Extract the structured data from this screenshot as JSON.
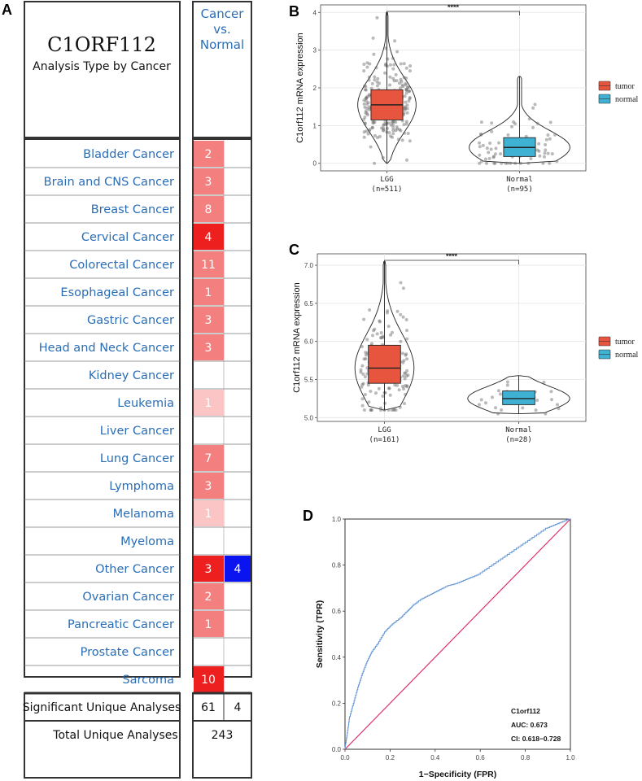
{
  "panel_a": {
    "label": "A",
    "gene": "C1ORF112",
    "subtitle": "Analysis Type by Cancer",
    "header_line1": "Cancer",
    "header_line2": "vs.",
    "header_line3": "Normal",
    "rows": [
      {
        "name": "Bladder Cancer",
        "up": 2,
        "down": null,
        "up_color": "#f47f7f"
      },
      {
        "name": "Brain and CNS Cancer",
        "up": 3,
        "down": null,
        "up_color": "#f47f7f"
      },
      {
        "name": "Breast Cancer",
        "up": 8,
        "down": null,
        "up_color": "#f47f7f"
      },
      {
        "name": "Cervical Cancer",
        "up": 4,
        "down": null,
        "up_color": "#ee1f1f"
      },
      {
        "name": "Colorectal Cancer",
        "up": 11,
        "down": null,
        "up_color": "#f47f7f"
      },
      {
        "name": "Esophageal Cancer",
        "up": 1,
        "down": null,
        "up_color": "#f47f7f"
      },
      {
        "name": "Gastric Cancer",
        "up": 3,
        "down": null,
        "up_color": "#f47f7f"
      },
      {
        "name": "Head and Neck Cancer",
        "up": 3,
        "down": null,
        "up_color": "#f47f7f"
      },
      {
        "name": "Kidney Cancer",
        "up": null,
        "down": null,
        "up_color": ""
      },
      {
        "name": "Leukemia",
        "up": 1,
        "down": null,
        "up_color": "#fbc5c5"
      },
      {
        "name": "Liver Cancer",
        "up": null,
        "down": null,
        "up_color": ""
      },
      {
        "name": "Lung Cancer",
        "up": 7,
        "down": null,
        "up_color": "#f47f7f"
      },
      {
        "name": "Lymphoma",
        "up": 3,
        "down": null,
        "up_color": "#f47f7f"
      },
      {
        "name": "Melanoma",
        "up": 1,
        "down": null,
        "up_color": "#fbc5c5"
      },
      {
        "name": "Myeloma",
        "up": null,
        "down": null,
        "up_color": ""
      },
      {
        "name": "Other Cancer",
        "up": 3,
        "down": 4,
        "up_color": "#ee1f1f"
      },
      {
        "name": "Ovarian Cancer",
        "up": 2,
        "down": null,
        "up_color": "#f47f7f"
      },
      {
        "name": "Pancreatic Cancer",
        "up": 1,
        "down": null,
        "up_color": "#f47f7f"
      },
      {
        "name": "Prostate Cancer",
        "up": null,
        "down": null,
        "up_color": ""
      },
      {
        "name": "Sarcoma",
        "up": 10,
        "down": null,
        "up_color": "#ee1f1f"
      }
    ],
    "down_color": "#0a14f0",
    "sig_label": "Significant Unique Analyses",
    "sig_up": "61",
    "sig_down": "4",
    "total_label": "Total Unique Analyses",
    "total": "243"
  },
  "chart_data": [
    {
      "label": "B",
      "type": "violin-box",
      "ylabel": "C1orf112 mRNA expression",
      "ylim": [
        -0.2,
        4.2
      ],
      "yticks": [
        0,
        1,
        2,
        3,
        4
      ],
      "groups": [
        {
          "name": "LGG",
          "n_label": "(n=511)",
          "n": 511,
          "median": 1.55,
          "q1": 1.15,
          "q3": 1.95,
          "whisker_low": 0.0,
          "whisker_high": 4.0,
          "color": "#e8553e"
        },
        {
          "name": "Normal",
          "n_label": "(n=95)",
          "n": 95,
          "median": 0.42,
          "q1": 0.18,
          "q3": 0.68,
          "whisker_low": 0.0,
          "whisker_high": 2.3,
          "color": "#3fb1d3"
        }
      ],
      "significance": "****",
      "legend": [
        {
          "name": "tumor",
          "color": "#e8553e"
        },
        {
          "name": "normal",
          "color": "#3fb1d3"
        }
      ]
    },
    {
      "label": "C",
      "type": "violin-box",
      "ylabel": "C1orf112 mRNA expression",
      "ylim": [
        4.95,
        7.15
      ],
      "yticks": [
        5.0,
        5.5,
        6.0,
        6.5,
        7.0
      ],
      "groups": [
        {
          "name": "LGG",
          "n_label": "(n=161)",
          "n": 161,
          "median": 5.65,
          "q1": 5.45,
          "q3": 5.95,
          "whisker_low": 5.1,
          "whisker_high": 7.05,
          "color": "#e8553e"
        },
        {
          "name": "Normal",
          "n_label": "(n=28)",
          "n": 28,
          "median": 5.25,
          "q1": 5.17,
          "q3": 5.35,
          "whisker_low": 5.05,
          "whisker_high": 5.55,
          "color": "#3fb1d3"
        }
      ],
      "significance": "****",
      "legend": [
        {
          "name": "tumor",
          "color": "#e8553e"
        },
        {
          "name": "normal",
          "color": "#3fb1d3"
        }
      ]
    },
    {
      "label": "D",
      "type": "line",
      "title": "",
      "xlabel": "1−Specificity (FPR)",
      "ylabel": "Sensitivity (TPR)",
      "xlim": [
        0,
        1
      ],
      "ylim": [
        0,
        1
      ],
      "xticks": [
        0.0,
        0.2,
        0.4,
        0.6,
        0.8,
        1.0
      ],
      "yticks": [
        0.0,
        0.2,
        0.4,
        0.6,
        0.8,
        1.0
      ],
      "roc": {
        "fpr": [
          0,
          0.01,
          0.02,
          0.04,
          0.06,
          0.08,
          0.1,
          0.12,
          0.15,
          0.18,
          0.21,
          0.25,
          0.28,
          0.3,
          0.34,
          0.38,
          0.42,
          0.46,
          0.5,
          0.55,
          0.6,
          0.66,
          0.72,
          0.78,
          0.84,
          0.9,
          0.95,
          1.0
        ],
        "tpr": [
          0,
          0.06,
          0.13,
          0.2,
          0.27,
          0.33,
          0.38,
          0.42,
          0.46,
          0.51,
          0.54,
          0.57,
          0.6,
          0.62,
          0.65,
          0.67,
          0.69,
          0.71,
          0.72,
          0.74,
          0.76,
          0.8,
          0.84,
          0.88,
          0.92,
          0.96,
          0.98,
          1.0
        ],
        "color": "#6b9bd8"
      },
      "diagonal_color": "#e0245e",
      "annotation": {
        "name": "C1orf112",
        "auc": "AUC: 0.673",
        "ci": "CI: 0.618−0.728"
      }
    }
  ]
}
